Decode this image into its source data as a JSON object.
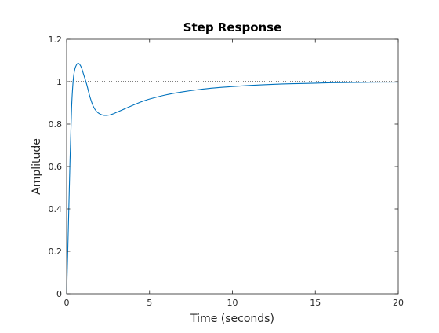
{
  "chart_data": {
    "type": "line",
    "title": "Step Response",
    "xlabel": "Time (seconds)",
    "ylabel": "Amplitude",
    "xlim": [
      0,
      20
    ],
    "ylim": [
      0,
      1.2
    ],
    "xticks": [
      0,
      5,
      10,
      15,
      20
    ],
    "xtick_labels": [
      "0",
      "5",
      "10",
      "15",
      "20"
    ],
    "yticks": [
      0,
      0.2,
      0.4,
      0.6,
      0.8,
      1,
      1.2
    ],
    "ytick_labels": [
      "0",
      "0.2",
      "0.4",
      "0.6",
      "0.8",
      "1",
      "1.2"
    ],
    "grid": false,
    "reference_line": {
      "y": 1,
      "style": "dotted",
      "color": "#000000"
    },
    "series": [
      {
        "color": "#0072BD",
        "x": [
          0,
          0.1,
          0.2,
          0.3,
          0.4,
          0.5,
          0.6,
          0.7,
          0.8,
          0.9,
          1.0,
          1.2,
          1.4,
          1.6,
          1.8,
          2.0,
          2.2,
          2.4,
          2.6,
          2.8,
          3.0,
          3.5,
          4.0,
          4.5,
          5,
          6,
          7,
          8,
          9,
          10,
          11,
          12,
          13,
          14,
          15,
          16,
          17,
          18,
          19,
          20
        ],
        "y": [
          0,
          0.3,
          0.62,
          0.88,
          1.01,
          1.06,
          1.08,
          1.087,
          1.08,
          1.065,
          1.04,
          0.99,
          0.93,
          0.885,
          0.86,
          0.848,
          0.842,
          0.841,
          0.843,
          0.848,
          0.855,
          0.872,
          0.889,
          0.905,
          0.918,
          0.938,
          0.952,
          0.963,
          0.971,
          0.977,
          0.982,
          0.986,
          0.989,
          0.991,
          0.993,
          0.995,
          0.996,
          0.997,
          0.998,
          0.998
        ]
      }
    ]
  }
}
